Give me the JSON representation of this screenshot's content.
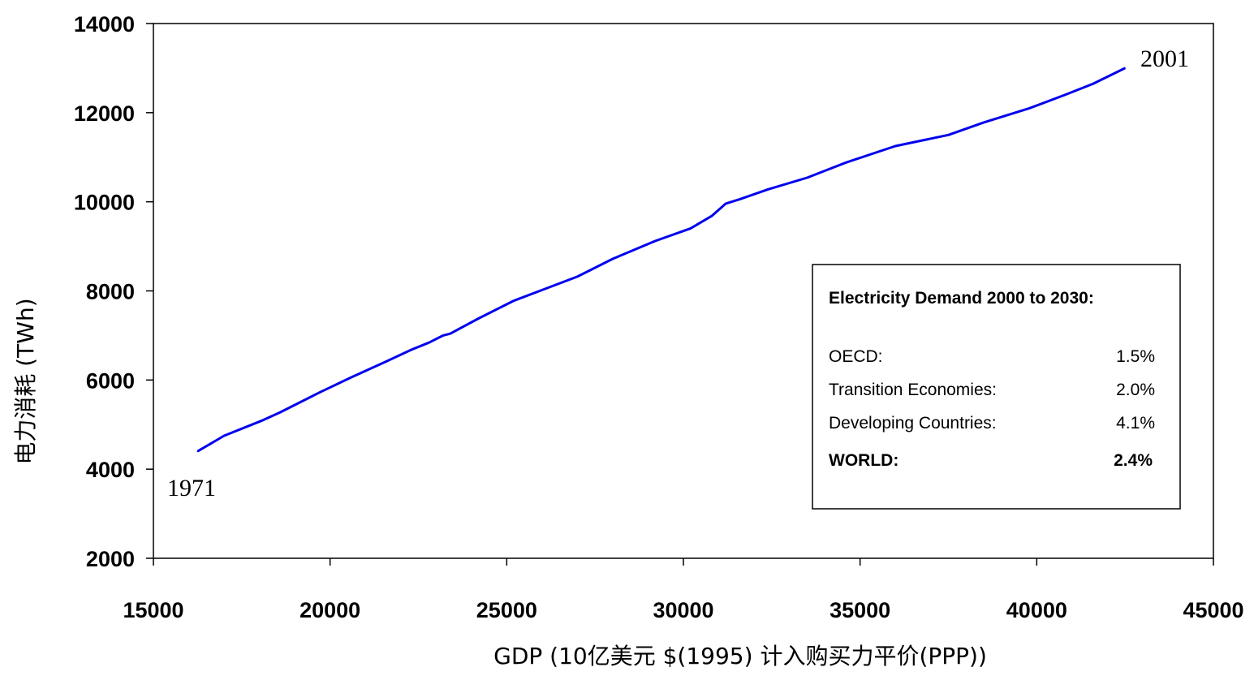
{
  "chart_data": {
    "type": "line",
    "title": "",
    "xlabel": "GDP (10亿美元 $(1995) 计入购买力平价(PPP))",
    "ylabel": "电力消耗 (TWh)",
    "xlim": [
      15000,
      45000
    ],
    "ylim": [
      2000,
      14000
    ],
    "x_ticks": [
      "15000",
      "20000",
      "25000",
      "30000",
      "35000",
      "40000",
      "45000"
    ],
    "y_ticks": [
      "2000",
      "4000",
      "6000",
      "8000",
      "10000",
      "12000",
      "14000"
    ],
    "grid": false,
    "series": [
      {
        "x": [
          16250,
          17000,
          18100,
          18600,
          19100,
          19700,
          20600,
          21600,
          22300,
          22800,
          23200,
          23400,
          24200,
          25200,
          26000,
          27000,
          28000,
          29200,
          30200,
          30800,
          31200,
          31600,
          32400,
          33500,
          34600,
          36000,
          37500,
          38500,
          39800,
          40800,
          41600,
          42500
        ],
        "y": [
          4400,
          4750,
          5100,
          5280,
          5480,
          5720,
          6060,
          6420,
          6680,
          6840,
          7000,
          7040,
          7380,
          7780,
          8020,
          8320,
          8720,
          9120,
          9400,
          9680,
          9960,
          10060,
          10280,
          10540,
          10880,
          11250,
          11500,
          11780,
          12100,
          12400,
          12650,
          13000
        ],
        "color": "#0000ee"
      }
    ],
    "annotations": [
      {
        "text": "1971",
        "x": 16250,
        "y": 4400
      },
      {
        "text": "2001",
        "x": 42500,
        "y": 13000
      }
    ],
    "legend": {
      "title": "Electricity Demand 2000 to 2030:",
      "rows": [
        {
          "label": "OECD:",
          "value": "1.5%",
          "bold": false
        },
        {
          "label": "Transition Economies:",
          "value": "2.0%",
          "bold": false
        },
        {
          "label": "Developing Countries:",
          "value": "4.1%",
          "bold": false
        },
        {
          "label": "WORLD:",
          "value": "2.4%",
          "bold": true
        }
      ],
      "placement": "lower-right"
    }
  }
}
